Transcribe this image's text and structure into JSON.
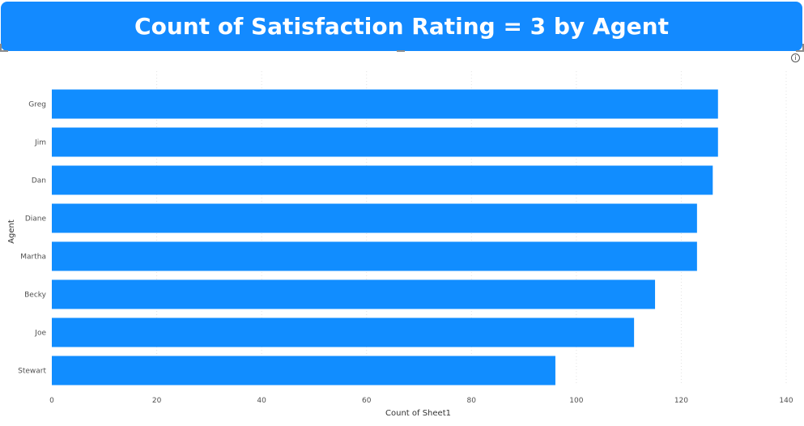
{
  "title": "Count of Satisfaction Rating = 3 by Agent",
  "colors": {
    "bar": "#118dff",
    "title_bg": "#138aff",
    "title_text": "#ffffff",
    "grid": "#e3e3e3"
  },
  "info_icon": "info-icon",
  "chart_data": {
    "type": "bar",
    "orientation": "horizontal",
    "categories": [
      "Greg",
      "Jim",
      "Dan",
      "Diane",
      "Martha",
      "Becky",
      "Joe",
      "Stewart"
    ],
    "values": [
      127,
      127,
      126,
      123,
      123,
      115,
      111,
      96
    ],
    "xlabel": "Count of Sheet1",
    "ylabel": "Agent",
    "xlim": [
      0,
      140
    ],
    "xticks": [
      0,
      20,
      40,
      60,
      80,
      100,
      120,
      140
    ],
    "xtick_labels": [
      "0",
      "20",
      "40",
      "60",
      "80",
      "100",
      "120",
      "140"
    ],
    "grid": "vertical-dotted",
    "legend": "none"
  }
}
